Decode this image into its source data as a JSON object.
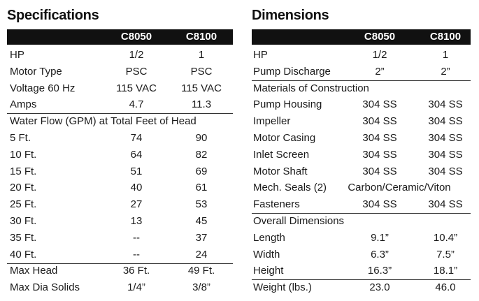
{
  "tables": [
    {
      "title": "Specifications",
      "columns": [
        "C8050",
        "C8100"
      ],
      "groups": [
        [
          [
            "HP",
            "1/2",
            "1"
          ],
          [
            "Motor Type",
            "PSC",
            "PSC"
          ],
          [
            "Voltage 60 Hz",
            "115 VAC",
            "115 VAC"
          ],
          [
            "Amps",
            "4.7",
            "11.3"
          ]
        ],
        [
          [
            "Water Flow (GPM) at Total Feet of Head"
          ],
          [
            "5 Ft.",
            "74",
            "90"
          ],
          [
            "10 Ft.",
            "64",
            "82"
          ],
          [
            "15 Ft.",
            "51",
            "69"
          ],
          [
            "20 Ft.",
            "40",
            "61"
          ],
          [
            "25 Ft.",
            "27",
            "53"
          ],
          [
            "30 Ft.",
            "13",
            "45"
          ],
          [
            "35 Ft.",
            "--",
            "37"
          ],
          [
            "40 Ft.",
            "--",
            "24"
          ]
        ],
        [
          [
            "Max Head",
            "36 Ft.",
            "49 Ft."
          ],
          [
            "Max Dia Solids",
            "1/4”",
            "3/8”"
          ]
        ]
      ]
    },
    {
      "title": "Dimensions",
      "columns": [
        "C8050",
        "C8100"
      ],
      "groups": [
        [
          [
            "HP",
            "1/2",
            "1"
          ],
          [
            "Pump Discharge",
            "2”",
            "2”"
          ]
        ],
        [
          [
            "Materials of Construction"
          ],
          [
            "Pump Housing",
            "304 SS",
            "304 SS"
          ],
          [
            "Impeller",
            "304 SS",
            "304 SS"
          ],
          [
            "Motor Casing",
            "304 SS",
            "304 SS"
          ],
          [
            "Inlet Screen",
            "304 SS",
            "304 SS"
          ],
          [
            "Motor Shaft",
            "304 SS",
            "304 SS"
          ],
          [
            "Mech. Seals (2)",
            "Carbon/Ceramic/Viton"
          ],
          [
            "Fasteners",
            "304 SS",
            "304 SS"
          ]
        ],
        [
          [
            "Overall Dimensions"
          ],
          [
            "Length",
            "9.1”",
            "10.4”"
          ],
          [
            "Width",
            "6.3”",
            "7.5”"
          ],
          [
            "Height",
            "16.3”",
            "18.1”"
          ]
        ],
        [
          [
            "Weight (lbs.)",
            "23.0",
            "46.0"
          ]
        ]
      ]
    }
  ]
}
